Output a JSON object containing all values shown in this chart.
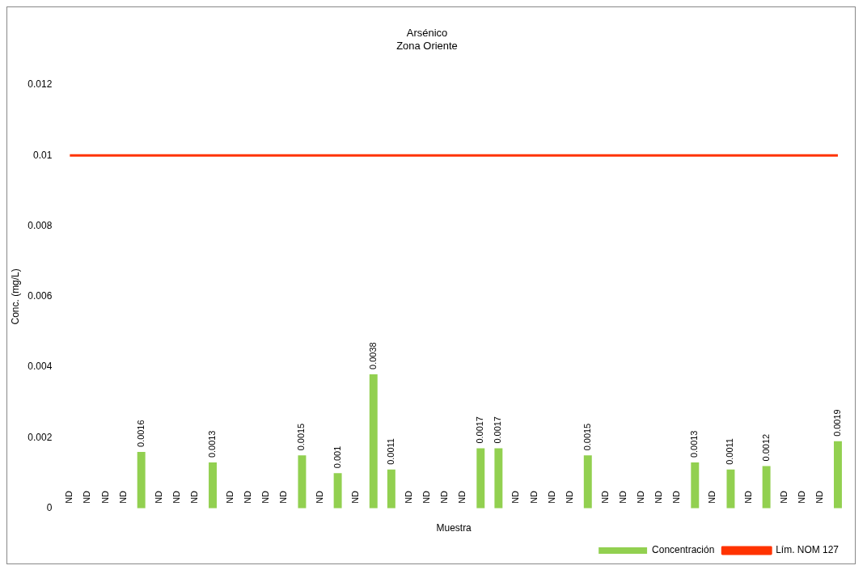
{
  "chart_data": {
    "type": "bar",
    "title": "Arsénico",
    "subtitle": "Zona Oriente",
    "xlabel": "Muestra",
    "ylabel": "Conc. (mg/L)",
    "categories": [
      null,
      null,
      null,
      null,
      null,
      null,
      null,
      null,
      null,
      null,
      null,
      null,
      null,
      null,
      null,
      null,
      null,
      null,
      null,
      null,
      null,
      null,
      null,
      null,
      null,
      null,
      null,
      null,
      null,
      null,
      null,
      null,
      null,
      null,
      null,
      null,
      null,
      null,
      null,
      null,
      null,
      null,
      null,
      null
    ],
    "series": [
      {
        "name": "Concentración",
        "color": "#92d050",
        "values": [
          0,
          0,
          0,
          0,
          0.0016,
          0,
          0,
          0,
          0.0013,
          0,
          0,
          0,
          0,
          0.0015,
          0,
          0.001,
          0,
          0.0038,
          0.0011,
          0,
          0,
          0,
          0,
          0.0017,
          0.0017,
          0,
          0,
          0,
          0,
          0.0015,
          0,
          0,
          0,
          0,
          0,
          0.0013,
          0,
          0.0011,
          0,
          0.0012,
          0,
          0,
          0,
          0.0019
        ],
        "value_labels": [
          "ND",
          "ND",
          "ND",
          "ND",
          "0.0016",
          "ND",
          "ND",
          "ND",
          "0.0013",
          "ND",
          "ND",
          "ND",
          "ND",
          "0.0015",
          "ND",
          "0.001",
          "ND",
          "0.0038",
          "0.0011",
          "ND",
          "ND",
          "ND",
          "ND",
          "0.0017",
          "0.0017",
          "ND",
          "ND",
          "ND",
          "ND",
          "0.0015",
          "ND",
          "ND",
          "ND",
          "ND",
          "ND",
          "0.0013",
          "ND",
          "0.0011",
          "ND",
          "0.0012",
          "ND",
          "ND",
          "ND",
          "0.0019"
        ]
      },
      {
        "name": "Lím. NOM 127",
        "type": "line",
        "color": "#ff3300",
        "values": [
          0.01,
          0.01,
          0.01,
          0.01,
          0.01,
          0.01,
          0.01,
          0.01,
          0.01,
          0.01,
          0.01,
          0.01,
          0.01,
          0.01,
          0.01,
          0.01,
          0.01,
          0.01,
          0.01,
          0.01,
          0.01,
          0.01,
          0.01,
          0.01,
          0.01,
          0.01,
          0.01,
          0.01,
          0.01,
          0.01,
          0.01,
          0.01,
          0.01,
          0.01,
          0.01,
          0.01,
          0.01,
          0.01,
          0.01,
          0.01,
          0.01,
          0.01,
          0.01,
          0.01
        ]
      }
    ],
    "ylim": [
      0,
      0.012
    ],
    "yticks": [
      0,
      0.002,
      0.004,
      0.006,
      0.008,
      0.01,
      0.012
    ],
    "grid": false,
    "legend": "bottom right",
    "marker": "none"
  }
}
